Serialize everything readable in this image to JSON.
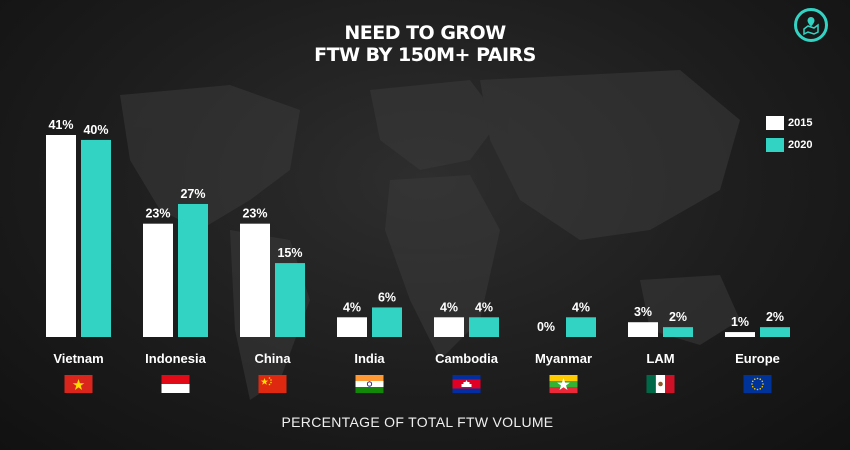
{
  "title_line1": "NEED TO GROW",
  "title_line2": "FTW BY 150M+ PAIRS",
  "footer": "PERCENTAGE OF TOTAL FTW VOLUME",
  "legend": [
    {
      "label": "2015",
      "color": "#ffffff"
    },
    {
      "label": "2020",
      "color": "#33d3c3"
    }
  ],
  "chart_data": {
    "type": "bar",
    "categories": [
      "Vietnam",
      "Indonesia",
      "China",
      "India",
      "Cambodia",
      "Myanmar",
      "LAM",
      "Europe"
    ],
    "series": [
      {
        "name": "2015",
        "values": [
          41,
          23,
          23,
          4,
          4,
          0,
          3,
          1
        ],
        "labels": [
          "41%",
          "23%",
          "23%",
          "4%",
          "4%",
          "0%",
          "3%",
          "1%"
        ],
        "color": "#ffffff"
      },
      {
        "name": "2020",
        "values": [
          40,
          27,
          15,
          6,
          4,
          4,
          2,
          2
        ],
        "labels": [
          "40%",
          "27%",
          "15%",
          "6%",
          "4%",
          "4%",
          "2%",
          "2%"
        ],
        "color": "#33d3c3"
      }
    ],
    "ylim": [
      0,
      41
    ],
    "flags": [
      "vietnam-flag-icon",
      "indonesia-flag-icon",
      "china-flag-icon",
      "india-flag-icon",
      "cambodia-flag-icon",
      "myanmar-flag-icon",
      "mexico-flag-icon",
      "eu-flag-icon"
    ]
  }
}
